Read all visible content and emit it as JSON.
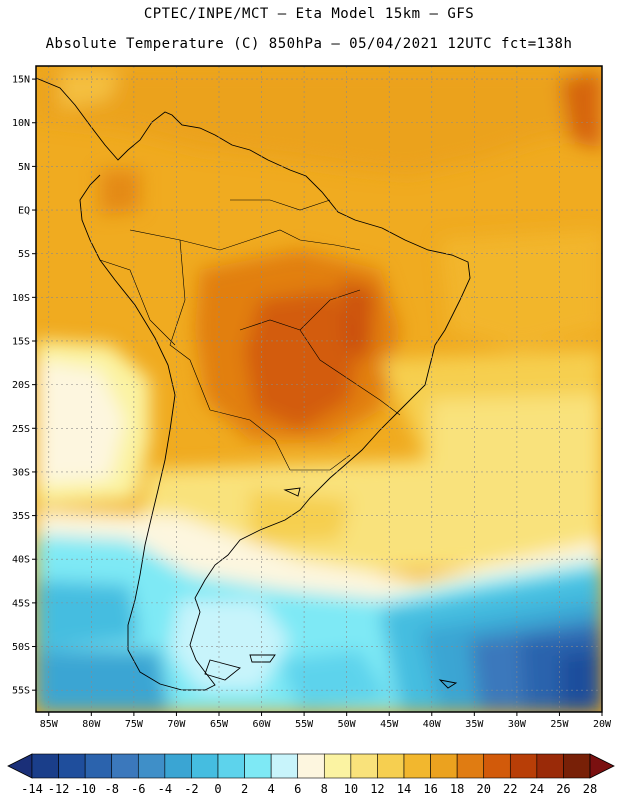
{
  "header": {
    "line1": "CPTEC/INPE/MCT –  Eta Model 15km – GFS",
    "line2": "Absolute Temperature (C) 850hPa – 05/04/2021 12UTC fct=138h"
  },
  "axes": {
    "lat_labels": [
      "15N",
      "10N",
      "5N",
      "EQ",
      "5S",
      "10S",
      "15S",
      "20S",
      "25S",
      "30S",
      "35S",
      "40S",
      "45S",
      "50S",
      "55S"
    ],
    "lat_values": [
      15,
      10,
      5,
      0,
      -5,
      -10,
      -15,
      -20,
      -25,
      -30,
      -35,
      -40,
      -45,
      -50,
      -55
    ],
    "lon_labels": [
      "85W",
      "80W",
      "75W",
      "70W",
      "65W",
      "60W",
      "55W",
      "50W",
      "45W",
      "40W",
      "35W",
      "30W",
      "25W",
      "20W"
    ],
    "lon_values": [
      -85,
      -80,
      -75,
      -70,
      -65,
      -60,
      -55,
      -50,
      -45,
      -40,
      -35,
      -30,
      -25,
      -20
    ],
    "lat_range": [
      -57.5,
      16.5
    ],
    "lon_range": [
      -86.5,
      -20
    ]
  },
  "colorbar": {
    "labels": [
      "-14",
      "-12",
      "-10",
      "-8",
      "-6",
      "-4",
      "-2",
      "0",
      "2",
      "4",
      "6",
      "8",
      "10",
      "12",
      "14",
      "16",
      "18",
      "20",
      "22",
      "24",
      "26",
      "28"
    ],
    "colors": [
      "#1a3e8a",
      "#1f4e9c",
      "#2b63ad",
      "#3b78bc",
      "#3f8fc8",
      "#3aa5d3",
      "#45bde0",
      "#5dd3ec",
      "#7ee9f5",
      "#c8f4fb",
      "#fdf6df",
      "#fbf3a2",
      "#f9e27b",
      "#f6cf50",
      "#f2b72e",
      "#eba21f",
      "#e07c12",
      "#d25a0a",
      "#b83e07",
      "#9a2a08",
      "#782007"
    ],
    "under_color": "#1a2f78",
    "over_color": "#7a1010"
  }
}
